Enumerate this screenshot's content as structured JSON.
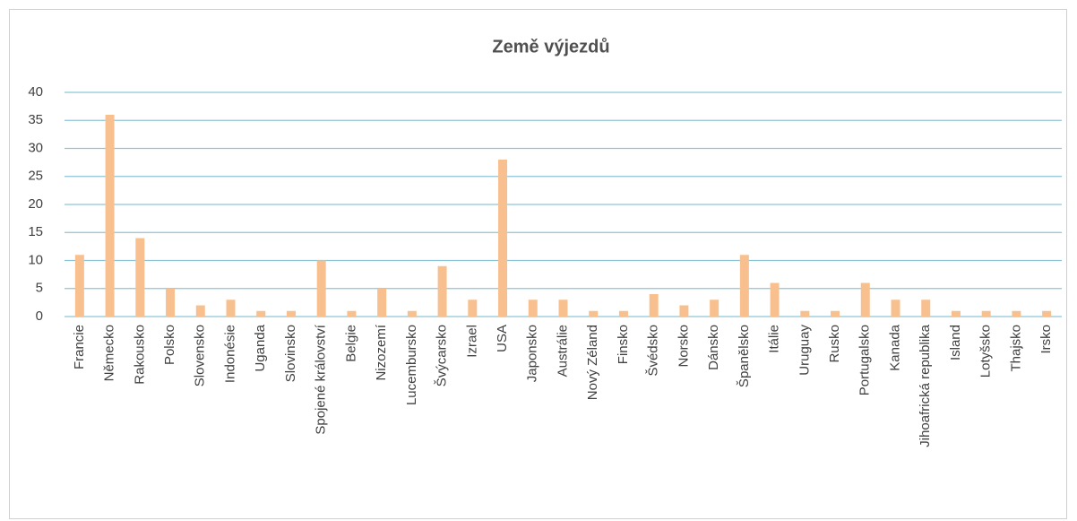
{
  "chart_data": {
    "type": "bar",
    "title": "Země výjezdů",
    "categories": [
      "Francie",
      "Německo",
      "Rakousko",
      "Polsko",
      "Slovensko",
      "Indonésie",
      "Uganda",
      "Slovinsko",
      "Spojené království",
      "Belgie",
      "Nizozemí",
      "Lucembursko",
      "Švýcarsko",
      "Izrael",
      "USA",
      "Japonsko",
      "Austrálie",
      "Nový Zéland",
      "Finsko",
      "Švédsko",
      "Norsko",
      "Dánsko",
      "Španělsko",
      "Itálie",
      "Uruguay",
      "Rusko",
      "Portugalsko",
      "Kanada",
      "Jihoafrická republika",
      "Island",
      "Lotyšsko",
      "Thajsko",
      "Irsko"
    ],
    "values": [
      11,
      36,
      14,
      5,
      2,
      3,
      1,
      1,
      10,
      1,
      5,
      1,
      9,
      3,
      28,
      3,
      3,
      1,
      1,
      4,
      2,
      3,
      11,
      6,
      1,
      1,
      6,
      3,
      3,
      1,
      1,
      1,
      1
    ],
    "color": "#f9c08f",
    "ylim": [
      0,
      40
    ],
    "yticks": [
      0,
      5,
      10,
      15,
      20,
      25,
      30,
      35,
      40
    ],
    "grid": true
  }
}
